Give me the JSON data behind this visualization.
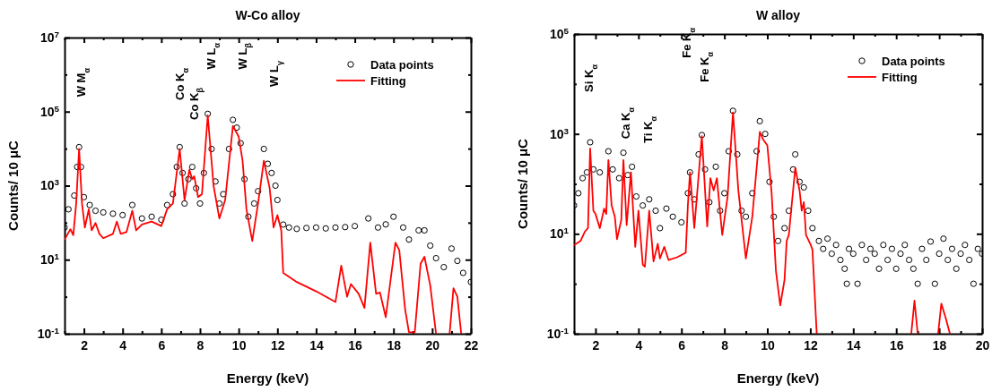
{
  "chart_data": [
    {
      "type": "scatter",
      "title": "W-Co alloy",
      "xlabel": "Energy (keV)",
      "ylabel": "Counts/ 10 μC",
      "log": "y",
      "legend": "top right",
      "grid": false,
      "xlim": [
        1,
        22
      ],
      "xticks": [
        {
          "value": 1,
          "label": null
        },
        2,
        {
          "value": 3,
          "label": null
        },
        4,
        {
          "value": 5,
          "label": null
        },
        6,
        {
          "value": 7,
          "label": null
        },
        8,
        {
          "value": 9,
          "label": null
        },
        10,
        {
          "value": 11,
          "label": null
        },
        12,
        {
          "value": 13,
          "label": null
        },
        14,
        {
          "value": 15,
          "label": null
        },
        16,
        {
          "value": 17,
          "label": null
        },
        18,
        {
          "value": 19,
          "label": null
        },
        20,
        {
          "value": 21,
          "label": null
        },
        22
      ],
      "ylim": [
        0.1,
        10000000
      ],
      "yticks": [
        {
          "value": 0.1,
          "label": "10$^{-1}$"
        },
        {
          "value": 1,
          "label": null
        },
        {
          "value": 10,
          "label": "10$^{1}$"
        },
        {
          "value": 100,
          "label": null
        },
        {
          "value": 1000,
          "label": "10$^{3}$"
        },
        {
          "value": 10000,
          "label": null
        },
        {
          "value": 100000,
          "label": "10$^{5}$"
        },
        {
          "value": 1000000,
          "label": null
        },
        {
          "value": 10000000,
          "label": "10$^{7}$"
        }
      ],
      "series": [
        {
          "name": "Data points",
          "type": "scatter",
          "marker": "circle",
          "color": "#000000",
          "x": [
            1.0,
            1.2,
            1.5,
            1.65,
            1.75,
            1.85,
            2.0,
            2.3,
            2.6,
            3.0,
            3.5,
            4.0,
            4.5,
            5.0,
            5.5,
            6.0,
            6.3,
            6.6,
            6.8,
            6.95,
            7.1,
            7.2,
            7.4,
            7.6,
            7.8,
            8.0,
            8.2,
            8.4,
            8.6,
            8.8,
            9.0,
            9.2,
            9.5,
            9.7,
            9.9,
            10.1,
            10.3,
            10.5,
            10.8,
            11.0,
            11.3,
            11.5,
            11.7,
            11.9,
            12.0,
            12.3,
            12.6,
            13.0,
            13.5,
            14.0,
            14.5,
            15.0,
            15.5,
            16.0,
            16.7,
            17.2,
            17.6,
            18.0,
            18.5,
            18.8,
            19.3,
            19.6,
            19.9,
            20.2,
            20.6,
            21.0,
            21.3,
            21.6,
            22.0
          ],
          "values": [
            74,
            230,
            540,
            3200,
            11000,
            3200,
            490,
            300,
            210,
            190,
            175,
            160,
            300,
            130,
            145,
            120,
            300,
            590,
            3200,
            11000,
            2200,
            330,
            1500,
            3200,
            850,
            330,
            2200,
            87000,
            9800,
            1300,
            330,
            590,
            9800,
            60000,
            37000,
            14000,
            1500,
            145,
            330,
            710,
            9800,
            3900,
            2200,
            1000,
            410,
            89,
            74,
            68,
            72,
            74,
            70,
            74,
            76,
            81,
            130,
            74,
            90,
            145,
            74,
            35,
            62,
            62,
            24,
            11,
            6.3,
            20,
            9.3,
            4.4,
            2.5
          ]
        },
        {
          "name": "Fitting",
          "type": "line",
          "line_style": "solid",
          "color": "#ff0000",
          "x": [
            1.0,
            1.3,
            1.45,
            1.6,
            1.75,
            1.9,
            2.05,
            2.25,
            2.4,
            2.6,
            2.8,
            3.0,
            3.5,
            3.7,
            3.9,
            4.2,
            4.5,
            4.7,
            5.0,
            5.5,
            6.0,
            6.3,
            6.6,
            6.95,
            7.2,
            7.45,
            7.6,
            7.7,
            7.9,
            8.1,
            8.4,
            8.7,
            9.0,
            9.3,
            9.7,
            10.0,
            10.2,
            10.4,
            10.7,
            11.0,
            11.3,
            11.6,
            11.8,
            12.0,
            12.2,
            12.3,
            13.0,
            14.0,
            15.0,
            15.3,
            15.6,
            15.8,
            16.2,
            16.5,
            16.8,
            17.1,
            17.3,
            17.6,
            18.1,
            18.3,
            18.6,
            18.8,
            19.1,
            19.4,
            19.6,
            19.9,
            20.2,
            20.5,
            20.9,
            21.1,
            21.3,
            21.5
          ],
          "values": [
            35,
            67,
            46,
            330,
            9800,
            330,
            74,
            230,
            62,
            98,
            50,
            38,
            50,
            107,
            50,
            56,
            210,
            62,
            89,
            107,
            81,
            230,
            330,
            9800,
            410,
            2700,
            1500,
            1800,
            490,
            590,
            79000,
            1000,
            130,
            410,
            41000,
            21000,
            4700,
            230,
            32,
            330,
            4700,
            850,
            74,
            160,
            62,
            4.4,
            2.5,
            1.4,
            0.72,
            6.9,
            1.0,
            2.2,
            1.2,
            0.5,
            29,
            1.2,
            1.3,
            0.28,
            29,
            18,
            0.46,
            0.11,
            0.11,
            7.8,
            12,
            2.0,
            0.1,
            null,
            0.1,
            1.7,
            1.0,
            0.1
          ]
        }
      ],
      "annotations": [
        "W M$_{α}$",
        "Co K$_{α}$",
        "Co K$_{β}$",
        "W L$_{α}$",
        "W L$_{β}$",
        "W L$_{γ}$"
      ]
    },
    {
      "type": "scatter",
      "title": "W alloy",
      "xlabel": "Energy (keV)",
      "ylabel": "Counts/ 10 μC",
      "log": "y",
      "legend": "top right",
      "grid": false,
      "xlim": [
        1,
        20
      ],
      "xticks": [
        {
          "value": 1,
          "label": null
        },
        2,
        {
          "value": 3,
          "label": null
        },
        4,
        {
          "value": 5,
          "label": null
        },
        6,
        {
          "value": 7,
          "label": null
        },
        8,
        {
          "value": 9,
          "label": null
        },
        10,
        {
          "value": 11,
          "label": null
        },
        12,
        {
          "value": 13,
          "label": null
        },
        14,
        {
          "value": 15,
          "label": null
        },
        16,
        {
          "value": 17,
          "label": null
        },
        18,
        {
          "value": 19,
          "label": null
        },
        20
      ],
      "ylim": [
        0.1,
        100000
      ],
      "yticks": [
        {
          "value": 0.1,
          "label": "10$^{-1}$"
        },
        {
          "value": 1,
          "label": null
        },
        {
          "value": 10,
          "label": "10$^{1}$"
        },
        {
          "value": 100,
          "label": null
        },
        {
          "value": 1000,
          "label": "10$^{3}$"
        },
        {
          "value": 10000,
          "label": null
        },
        {
          "value": 100000,
          "label": "10$^{5}$"
        }
      ],
      "series": [
        {
          "name": "Data points",
          "type": "scatter",
          "marker": "circle",
          "color": "#000000",
          "x": [
            1.0,
            1.2,
            1.4,
            1.6,
            1.75,
            1.9,
            2.2,
            2.6,
            2.8,
            3.1,
            3.3,
            3.5,
            3.7,
            3.9,
            4.2,
            4.5,
            4.8,
            5.0,
            5.3,
            5.6,
            6.0,
            6.3,
            6.4,
            6.6,
            6.8,
            6.95,
            7.1,
            7.3,
            7.6,
            7.8,
            8.0,
            8.2,
            8.4,
            8.6,
            8.8,
            9.0,
            9.3,
            9.5,
            9.65,
            9.9,
            10.1,
            10.3,
            10.5,
            10.8,
            11.0,
            11.2,
            11.3,
            11.5,
            11.7,
            11.9,
            12.1,
            12.4,
            12.6,
            12.8,
            13.0,
            13.2,
            13.4,
            13.6,
            13.7,
            13.8,
            14.0,
            14.2,
            14.4,
            14.6,
            14.8,
            15.0,
            15.2,
            15.4,
            15.6,
            15.8,
            16.0,
            16.2,
            16.4,
            16.6,
            16.8,
            17.0,
            17.2,
            17.4,
            17.6,
            17.8,
            18.0,
            18.2,
            18.4,
            18.6,
            18.8,
            19.0,
            19.2,
            19.4,
            19.6,
            19.8,
            20.0
          ],
          "values": [
            37,
            65,
            130,
            170,
            680,
            195,
            170,
            450,
            195,
            130,
            420,
            150,
            220,
            56,
            37,
            49,
            29,
            13,
            32,
            22,
            17,
            65,
            170,
            49,
            390,
            950,
            195,
            43,
            220,
            29,
            65,
            450,
            2900,
            390,
            29,
            22,
            65,
            450,
            1800,
            1000,
            110,
            22,
            7.2,
            13,
            29,
            195,
            390,
            110,
            85,
            29,
            13,
            7.2,
            5,
            8,
            4,
            6,
            3,
            2,
            1,
            5,
            4,
            1,
            6,
            3,
            5,
            4,
            2,
            6,
            3,
            5,
            2,
            4,
            6,
            3,
            2,
            1,
            5,
            3,
            7,
            1,
            4,
            8,
            3,
            5,
            2,
            4,
            6,
            3,
            1,
            5,
            4
          ]
        },
        {
          "name": "Fitting",
          "type": "line",
          "line_style": "solid",
          "color": "#ff0000",
          "x": [
            1.0,
            1.3,
            1.5,
            1.65,
            1.75,
            1.9,
            2.0,
            2.2,
            2.4,
            2.5,
            2.6,
            2.75,
            2.9,
            3.0,
            3.2,
            3.3,
            3.45,
            3.65,
            3.85,
            4.0,
            4.2,
            4.3,
            4.5,
            4.7,
            4.9,
            5.0,
            5.2,
            5.4,
            5.8,
            6.2,
            6.3,
            6.4,
            6.6,
            6.95,
            7.2,
            7.35,
            7.5,
            7.65,
            7.9,
            8.15,
            8.4,
            8.65,
            9.0,
            9.3,
            9.65,
            9.8,
            10.0,
            10.2,
            10.4,
            10.6,
            10.8,
            10.9,
            11.0,
            11.3,
            11.5,
            11.6,
            11.7,
            11.8,
            12.0,
            12.1,
            12.3,
            14.5,
            16.7,
            16.85,
            17.0,
            17.5,
            17.95,
            18.1,
            18.3,
            18.5
          ],
          "values": [
            5.9,
            7.2,
            11,
            13,
            510,
            29,
            25,
            13,
            32,
            25,
            300,
            37,
            22,
            7.8,
            19,
            300,
            15,
            170,
            5.5,
            29,
            2.4,
            2.2,
            29,
            2.8,
            6.3,
            3.2,
            5.5,
            3.0,
            3.4,
            4.2,
            37,
            170,
            13,
            900,
            14,
            130,
            74,
            130,
            9.5,
            56,
            2700,
            74,
            3.2,
            22,
            1100,
            780,
            590,
            65,
            1.8,
            0.37,
            1.2,
            7.2,
            9.5,
            210,
            74,
            29,
            43,
            9.5,
            6.3,
            4.8,
            0.1,
            null,
            0.1,
            0.46,
            0.1,
            null,
            0.1,
            0.4,
            0.21,
            0.1
          ]
        }
      ],
      "annotations": [
        "Si K$_{α}$",
        "Ca K$_{α}$",
        "Ti K$_{α}$",
        "Fe K$_{α}$",
        "Fe K$_{α}$"
      ]
    }
  ]
}
